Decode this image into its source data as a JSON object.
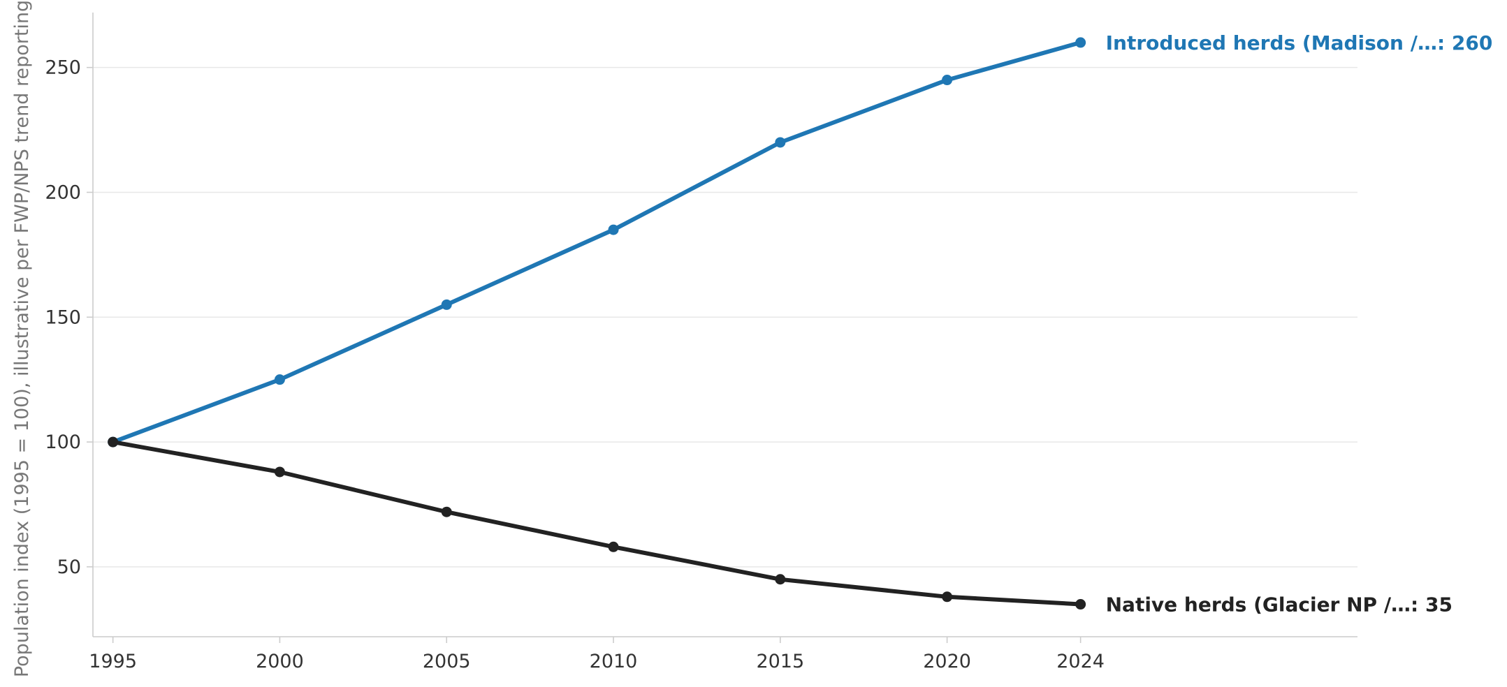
{
  "chart_data": {
    "type": "line",
    "title": "",
    "xlabel": "",
    "ylabel": "Population index (1995 = 100), illustrative per FWP/NPS trend reporting",
    "x": [
      1995,
      2000,
      2005,
      2010,
      2015,
      2020,
      2024
    ],
    "x_ticks": [
      "1995",
      "2000",
      "2005",
      "2010",
      "2015",
      "2020",
      "2024"
    ],
    "y_ticks": [
      "50",
      "100",
      "150",
      "200",
      "250"
    ],
    "xlim": [
      1994.4,
      2032.3
    ],
    "ylim": [
      22,
      272
    ],
    "grid": "horizontal",
    "legend": "none",
    "series": [
      {
        "name": "Introduced herds (Madison /…",
        "label": "Introduced herds (Madison /…: 260",
        "color": "#1f77b4",
        "values": [
          100,
          125,
          155,
          185,
          220,
          245,
          260
        ]
      },
      {
        "name": "Native herds (Glacier NP /…",
        "label": "Native herds (Glacier NP /…: 35",
        "color": "#222222",
        "values": [
          100,
          88,
          72,
          58,
          45,
          38,
          35
        ]
      }
    ]
  }
}
